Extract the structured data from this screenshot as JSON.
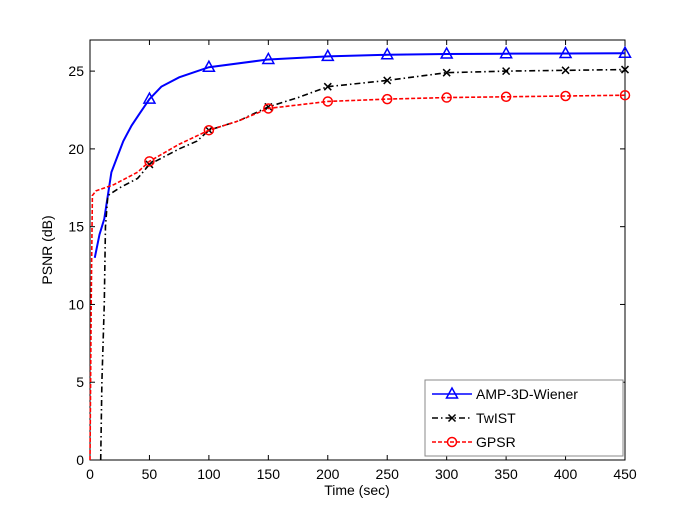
{
  "chart_data": {
    "type": "line",
    "xlabel": "Time (sec)",
    "ylabel": "PSNR (dB)",
    "xlim": [
      0,
      450
    ],
    "ylim": [
      0,
      27
    ],
    "xticks": [
      0,
      50,
      100,
      150,
      200,
      250,
      300,
      350,
      400,
      450
    ],
    "yticks": [
      0,
      5,
      10,
      15,
      20,
      25
    ],
    "grid": false,
    "legend": "bottom-right",
    "series": [
      {
        "name": "AMP-3D-Wiener",
        "color": "#0000ff",
        "dash": "solid",
        "marker": "triangle",
        "x": [
          4,
          8,
          12,
          15,
          18,
          23,
          28,
          35,
          42,
          50,
          60,
          75,
          100,
          150,
          200,
          250,
          300,
          350,
          400,
          450
        ],
        "y": [
          13,
          14.5,
          15.5,
          17,
          18.5,
          19.5,
          20.5,
          21.5,
          22.3,
          23.2,
          24,
          24.6,
          25.25,
          25.75,
          25.95,
          26.05,
          26.1,
          26.12,
          26.13,
          26.15
        ],
        "marker_x": [
          50,
          100,
          150,
          200,
          250,
          300,
          350,
          400,
          450
        ]
      },
      {
        "name": "TwIST",
        "color": "#000000",
        "dash": "dashdot",
        "marker": "x",
        "x": [
          9,
          10,
          12,
          13,
          15,
          25,
          40,
          50,
          75,
          90,
          100,
          125,
          150,
          175,
          200,
          250,
          300,
          350,
          400,
          450
        ],
        "y": [
          0,
          5,
          10,
          15,
          17,
          17.5,
          18.1,
          19,
          20,
          20.5,
          21.2,
          21.8,
          22.7,
          23.3,
          24,
          24.4,
          24.9,
          25,
          25.05,
          25.1
        ],
        "marker_x": [
          50,
          100,
          150,
          200,
          250,
          300,
          350,
          400,
          450
        ]
      },
      {
        "name": "GPSR",
        "color": "#ff0000",
        "dash": "dashed",
        "marker": "circle",
        "x": [
          0,
          1,
          2,
          5,
          20,
          40,
          50,
          75,
          100,
          125,
          150,
          200,
          250,
          300,
          350,
          400,
          450
        ],
        "y": [
          0,
          10,
          17,
          17.3,
          17.7,
          18.5,
          19.2,
          20.3,
          21.2,
          21.8,
          22.6,
          23.05,
          23.2,
          23.3,
          23.35,
          23.4,
          23.45
        ],
        "marker_x": [
          50,
          100,
          150,
          200,
          250,
          300,
          350,
          400,
          450
        ]
      }
    ]
  }
}
